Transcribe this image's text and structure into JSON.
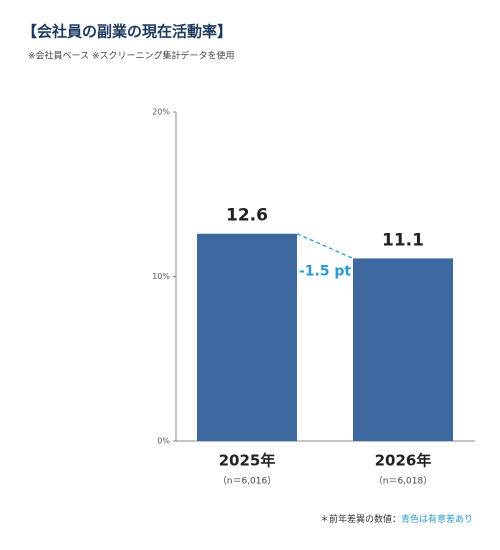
{
  "chart_data": {
    "type": "bar",
    "title": "【会社員の副業の現在活動率】",
    "subtitle": "※会社員ベース ※スクリーニング集計データを使用",
    "categories": [
      "2025年",
      "2026年"
    ],
    "category_notes": [
      "（n＝6,016）",
      "（n＝6,018）"
    ],
    "values": [
      12.6,
      11.1
    ],
    "color": "#3e68a0",
    "ylim": [
      0,
      20
    ],
    "yticks": [
      {
        "value": 0,
        "label": "0%"
      },
      {
        "value": 10,
        "label": "10%"
      },
      {
        "value": 20,
        "label": "20%"
      }
    ],
    "grid": false,
    "annotation": "-1.5 pt",
    "annotation_color": "#2b9bd0",
    "footnote": {
      "text": "＊前年差異の数値：",
      "highlight": "青色は有意差あり"
    }
  }
}
